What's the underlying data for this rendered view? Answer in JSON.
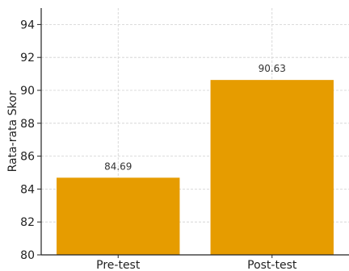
{
  "chart_data": {
    "type": "bar",
    "title": "",
    "xlabel": "",
    "ylabel": "Rata-rata Skor",
    "categories": [
      "Pre-test",
      "Post-test"
    ],
    "values": [
      84.69,
      90.63
    ],
    "value_labels": [
      "84.69",
      "90.63"
    ],
    "ylim": [
      80,
      95
    ],
    "yticks": [
      80,
      82,
      84,
      86,
      88,
      90,
      92,
      94
    ],
    "grid": true,
    "bar_color": "#E69C00",
    "grid_color": "#d0d0d0"
  }
}
